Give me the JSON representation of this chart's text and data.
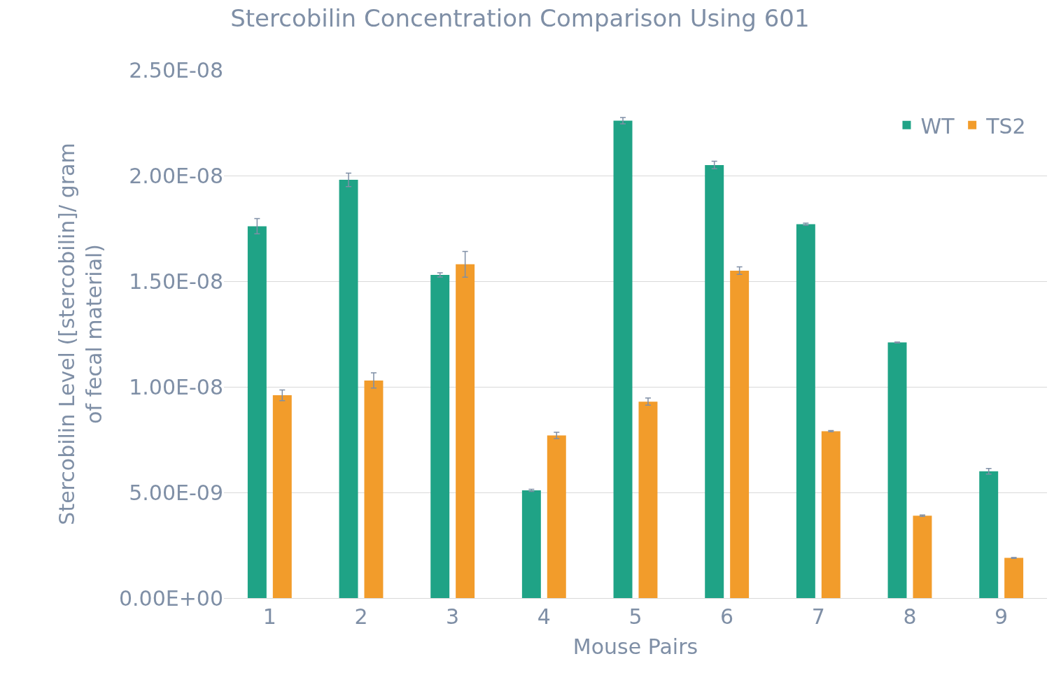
{
  "chart_data": {
    "type": "bar",
    "title": "Stercobilin Concentration Comparison Using 601",
    "xlabel": "Mouse Pairs",
    "ylabel": "Stercobilin Level ([stercobilin]/ gram of fecal material)",
    "categories": [
      "1",
      "2",
      "3",
      "4",
      "5",
      "6",
      "7",
      "8",
      "9"
    ],
    "series": [
      {
        "name": "WT",
        "color": "#1fa386",
        "values": [
          1.76e-08,
          1.98e-08,
          1.53e-08,
          5.1e-09,
          2.26e-08,
          2.05e-08,
          1.77e-08,
          1.21e-08,
          6e-09
        ],
        "errors": [
          3.6e-10,
          3.2e-10,
          1e-10,
          5e-11,
          1.5e-10,
          1.8e-10,
          5e-11,
          2e-11,
          1.3e-10
        ]
      },
      {
        "name": "TS2",
        "color": "#f29c2b",
        "values": [
          9.6e-09,
          1.03e-08,
          1.58e-08,
          7.7e-09,
          9.3e-09,
          1.55e-08,
          7.9e-09,
          3.9e-09,
          1.9e-09
        ],
        "errors": [
          2.5e-10,
          3.6e-10,
          6.1e-10,
          1.5e-10,
          1.7e-10,
          1.8e-10,
          3e-11,
          3e-11,
          2e-11
        ]
      }
    ],
    "ylim": [
      0,
      2.5e-08
    ],
    "yticks": [
      {
        "value": 0,
        "label": "0.00E+00"
      },
      {
        "value": 5e-09,
        "label": "5.00E-09"
      },
      {
        "value": 1e-08,
        "label": "1.00E-08"
      },
      {
        "value": 1.5e-08,
        "label": "1.50E-08"
      },
      {
        "value": 2e-08,
        "label": "2.00E-08"
      },
      {
        "value": 2.5e-08,
        "label": "2.50E-08"
      }
    ],
    "grid": "y",
    "legend": "top right"
  }
}
